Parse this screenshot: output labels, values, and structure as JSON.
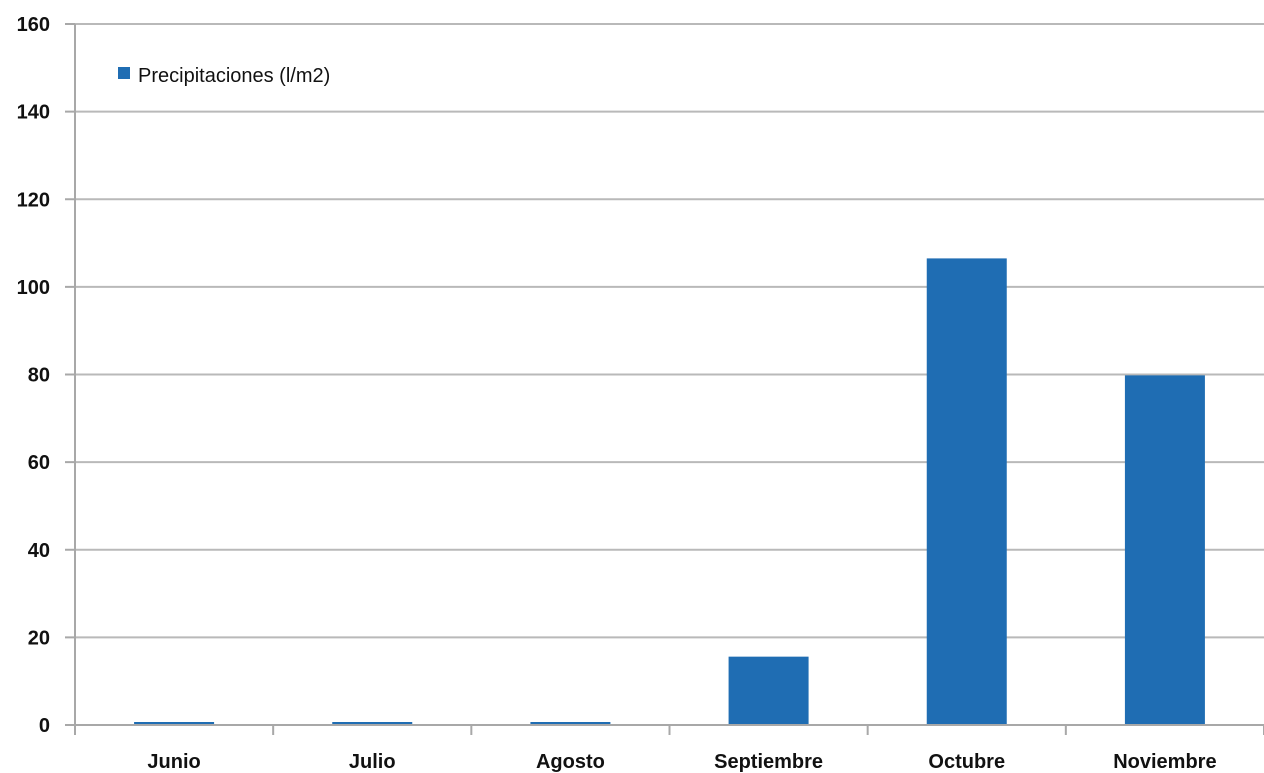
{
  "chart_data": {
    "type": "bar",
    "title": "",
    "xlabel": "",
    "ylabel": "",
    "categories": [
      "Junio",
      "Julio",
      "Agosto",
      "Septiembre",
      "Octubre",
      "Noviembre"
    ],
    "series": [
      {
        "name": "Precipitaciones (l/m2)",
        "values": [
          0.4,
          0.4,
          0.4,
          15.6,
          106.5,
          79.8
        ],
        "color": "#1f6db3"
      }
    ],
    "ylim": [
      0,
      160
    ],
    "yticks": [
      0,
      20,
      40,
      60,
      80,
      100,
      120,
      140,
      160
    ],
    "grid": true,
    "legend_position": "top-left"
  }
}
